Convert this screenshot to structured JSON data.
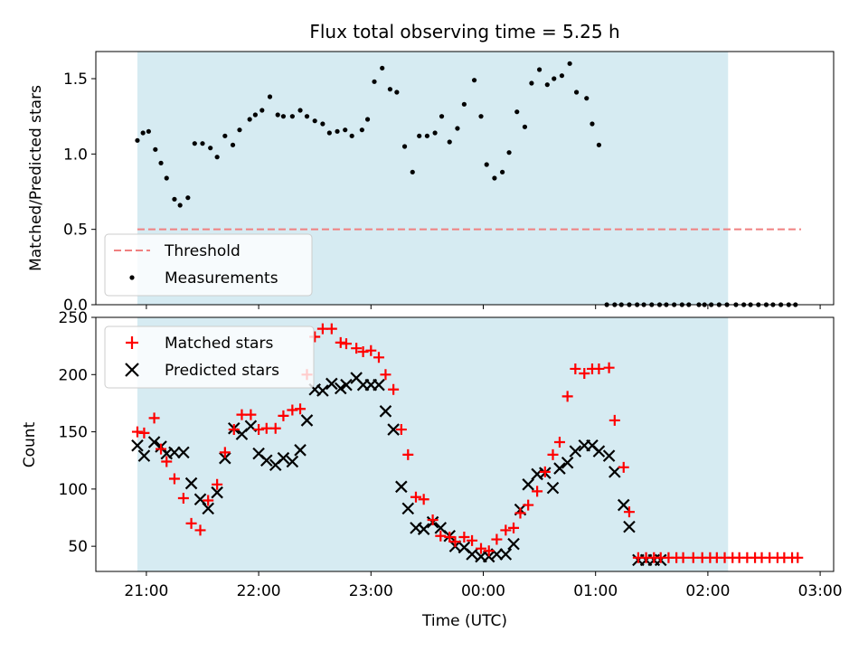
{
  "chart_data": [
    {
      "type": "scatter",
      "title": "Flux total observing time = 5.25 h",
      "xlabel": "",
      "ylabel": "Matched/Predicted stars",
      "ylim": [
        0,
        1.68
      ],
      "yticks": [
        "0.0",
        "0.5",
        "1.0",
        "1.5"
      ],
      "ytick_values": [
        0,
        0.5,
        1.0,
        1.5
      ],
      "shaded_x": [
        20.92,
        26.18
      ],
      "threshold": {
        "name": "Threshold",
        "value": 0.5,
        "x": [
          20.92,
          26.83
        ],
        "color": "#f08080"
      },
      "legend": {
        "position": "lower-left",
        "entries": [
          "Threshold",
          "Measurements"
        ]
      },
      "series": [
        {
          "name": "Measurements",
          "color": "#000000",
          "x": [
            20.92,
            20.97,
            21.02,
            21.08,
            21.13,
            21.18,
            21.25,
            21.3,
            21.37,
            21.43,
            21.5,
            21.57,
            21.63,
            21.7,
            21.77,
            21.83,
            21.92,
            21.97,
            22.03,
            22.1,
            22.17,
            22.22,
            22.3,
            22.37,
            22.43,
            22.5,
            22.57,
            22.63,
            22.7,
            22.77,
            22.83,
            22.92,
            22.97,
            23.03,
            23.1,
            23.17,
            23.23,
            23.3,
            23.37,
            23.43,
            23.5,
            23.57,
            23.63,
            23.7,
            23.77,
            23.83,
            23.92,
            23.98,
            24.03,
            24.1,
            24.17,
            24.23,
            24.3,
            24.37,
            24.43,
            24.5,
            24.57,
            24.63,
            24.7,
            24.77,
            24.83,
            24.92,
            24.97,
            25.03,
            25.1,
            25.17,
            25.23,
            25.3,
            25.37,
            25.43,
            25.5,
            25.57,
            25.63,
            25.7,
            25.77,
            25.83,
            25.92,
            25.97,
            26.03,
            26.1,
            26.17,
            26.25,
            26.32,
            26.38,
            26.45,
            26.52,
            26.58,
            26.65,
            26.72,
            26.78
          ],
          "y": [
            1.09,
            1.14,
            1.15,
            1.03,
            0.94,
            0.84,
            0.7,
            0.66,
            0.71,
            1.07,
            1.07,
            1.04,
            0.98,
            1.12,
            1.06,
            1.16,
            1.23,
            1.26,
            1.29,
            1.38,
            1.26,
            1.25,
            1.25,
            1.29,
            1.25,
            1.22,
            1.2,
            1.14,
            1.15,
            1.16,
            1.12,
            1.16,
            1.23,
            1.48,
            1.57,
            1.43,
            1.41,
            1.05,
            0.88,
            1.12,
            1.12,
            1.14,
            1.25,
            1.08,
            1.17,
            1.33,
            1.49,
            1.25,
            0.93,
            0.84,
            0.88,
            1.01,
            1.28,
            1.18,
            1.47,
            1.56,
            1.46,
            1.5,
            1.52,
            1.6,
            1.41,
            1.37,
            1.2,
            1.06,
            0.0,
            0.0,
            0.0,
            0.0,
            0.0,
            0.0,
            0.0,
            0.0,
            0.0,
            0.0,
            0.0,
            0.0,
            0.0,
            0.0,
            0.0,
            0.0,
            0.0,
            0.0,
            0.0,
            0.0,
            0.0,
            0.0,
            0.0,
            0.0,
            0.0,
            0.0
          ]
        }
      ]
    },
    {
      "type": "scatter",
      "title": "",
      "xlabel": "Time (UTC)",
      "ylabel": "Count",
      "ylim": [
        28,
        250
      ],
      "yticks": [
        "50",
        "100",
        "150",
        "200",
        "250"
      ],
      "ytick_values": [
        50,
        100,
        150,
        200,
        250
      ],
      "xlim": [
        20.55,
        27.12
      ],
      "xticks": [
        "21:00",
        "22:00",
        "23:00",
        "00:00",
        "01:00",
        "02:00",
        "03:00"
      ],
      "xtick_values": [
        21,
        22,
        23,
        24,
        25,
        26,
        27
      ],
      "shaded_x": [
        20.92,
        26.18
      ],
      "legend": {
        "position": "top-left",
        "entries": [
          "Matched stars",
          "Predicted stars"
        ]
      },
      "series": [
        {
          "name": "Matched stars",
          "color": "#ff0000",
          "marker": "plus",
          "x": [
            20.92,
            20.98,
            21.07,
            21.13,
            21.18,
            21.25,
            21.33,
            21.4,
            21.48,
            21.55,
            21.63,
            21.7,
            21.78,
            21.85,
            21.93,
            22.0,
            22.07,
            22.15,
            22.22,
            22.3,
            22.37,
            22.43,
            22.5,
            22.57,
            22.65,
            22.73,
            22.78,
            22.87,
            22.93,
            23.0,
            23.07,
            23.13,
            23.2,
            23.27,
            23.33,
            23.4,
            23.47,
            23.55,
            23.62,
            23.7,
            23.75,
            23.83,
            23.9,
            23.98,
            24.05,
            24.12,
            24.2,
            24.27,
            24.33,
            24.4,
            24.48,
            24.55,
            24.62,
            24.68,
            24.75,
            24.82,
            24.9,
            24.97,
            25.03,
            25.12,
            25.17,
            25.25,
            25.3,
            25.38,
            25.45,
            25.52,
            25.58,
            25.65,
            25.72,
            25.78,
            25.87,
            25.95,
            26.02,
            26.08,
            26.15,
            26.22,
            26.28,
            26.35,
            26.42,
            26.48,
            26.55,
            26.62,
            26.68,
            26.75,
            26.8
          ],
          "y": [
            150,
            149,
            162,
            135,
            124,
            109,
            92,
            70,
            64,
            90,
            104,
            132,
            152,
            165,
            165,
            152,
            153,
            153,
            164,
            169,
            170,
            200,
            233,
            240,
            240,
            228,
            227,
            223,
            220,
            221,
            215,
            200,
            187,
            152,
            130,
            93,
            91,
            73,
            59,
            58,
            54,
            58,
            55,
            48,
            46,
            56,
            64,
            66,
            79,
            86,
            98,
            115,
            130,
            141,
            181,
            205,
            201,
            205,
            205,
            206,
            160,
            119,
            80,
            40,
            40,
            40,
            40,
            40,
            40,
            40,
            40,
            40,
            40,
            40,
            40,
            40,
            40,
            40,
            40,
            40,
            40,
            40,
            40,
            40,
            40
          ]
        },
        {
          "name": "Predicted stars",
          "color": "#000000",
          "marker": "x",
          "x": [
            20.92,
            20.98,
            21.07,
            21.13,
            21.18,
            21.25,
            21.33,
            21.4,
            21.48,
            21.55,
            21.63,
            21.7,
            21.78,
            21.85,
            21.93,
            22.0,
            22.07,
            22.15,
            22.22,
            22.3,
            22.37,
            22.43,
            22.5,
            22.57,
            22.65,
            22.73,
            22.78,
            22.87,
            22.93,
            23.0,
            23.07,
            23.13,
            23.2,
            23.27,
            23.33,
            23.4,
            23.47,
            23.55,
            23.62,
            23.7,
            23.75,
            23.83,
            23.9,
            23.98,
            24.05,
            24.12,
            24.2,
            24.27,
            24.33,
            24.4,
            24.48,
            24.55,
            24.62,
            24.68,
            24.75,
            24.82,
            24.9,
            24.97,
            25.03,
            25.12,
            25.17,
            25.25,
            25.3,
            25.38,
            25.45,
            25.52,
            25.58
          ],
          "y": [
            138,
            129,
            141,
            137,
            131,
            132,
            132,
            105,
            91,
            83,
            97,
            127,
            153,
            148,
            155,
            131,
            125,
            121,
            127,
            124,
            134,
            160,
            187,
            186,
            192,
            188,
            191,
            197,
            191,
            191,
            191,
            168,
            152,
            102,
            83,
            66,
            65,
            71,
            66,
            59,
            50,
            49,
            43,
            41,
            41,
            43,
            43,
            52,
            82,
            104,
            113,
            114,
            101,
            118,
            123,
            133,
            138,
            138,
            133,
            129,
            115,
            86,
            67,
            38,
            38,
            38,
            38
          ]
        }
      ]
    }
  ]
}
